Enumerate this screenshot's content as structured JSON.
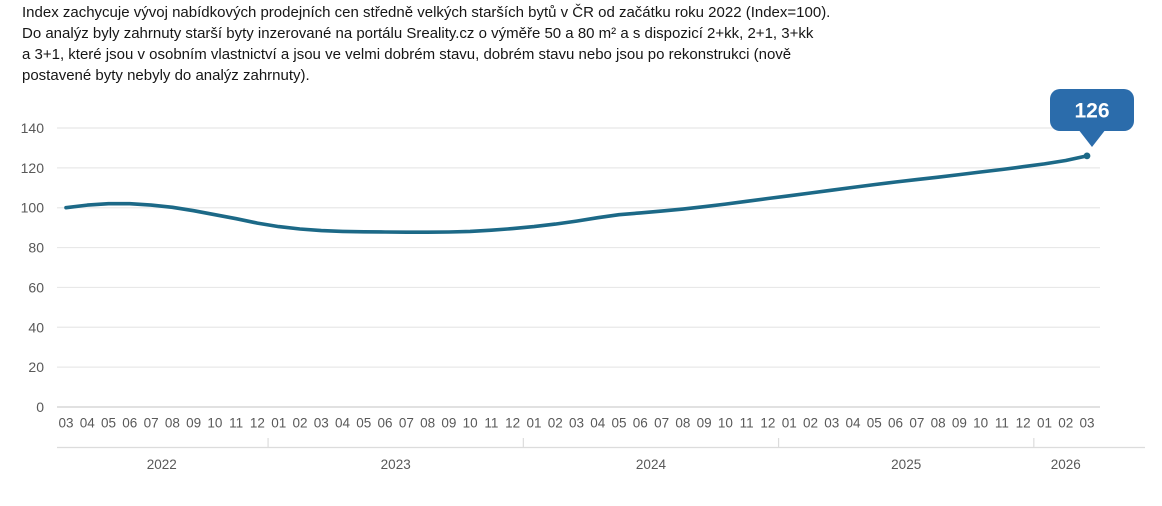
{
  "description": {
    "lines": [
      "Index zachycuje vývoj nabídkových prodejních cen středně velkých starších bytů v ČR od začátku roku 2022 (Index=100).",
      "Do analýz byly zahrnuty starší byty inzerované na portálu Sreality.cz o výměře 50 a 80 m² a s dispozicí 2+kk, 2+1, 3+kk",
      "a 3+1, které jsou v osobním vlastnictví a jsou ve velmi dobrém stavu, dobrém stavu nebo jsou po rekonstrukci (nově",
      "postavené byty nebyly do analýz zahrnuty)."
    ]
  },
  "chart_data": {
    "type": "line",
    "title": "",
    "xlabel": "",
    "ylabel": "",
    "ylim": [
      0,
      140
    ],
    "grid": true,
    "legend": "none",
    "y_ticks": [
      0,
      20,
      40,
      60,
      80,
      100,
      120,
      140
    ],
    "x_labels": [
      "03",
      "04",
      "05",
      "06",
      "07",
      "08",
      "09",
      "10",
      "11",
      "12",
      "01",
      "02",
      "03",
      "04",
      "05",
      "06",
      "07",
      "08",
      "09",
      "10",
      "11",
      "12",
      "01",
      "02",
      "03",
      "04",
      "05",
      "06",
      "07",
      "08",
      "09",
      "10",
      "11",
      "12",
      "01",
      "02",
      "03",
      "04",
      "05",
      "06",
      "07",
      "08",
      "09",
      "10",
      "11",
      "12",
      "01",
      "02",
      "03"
    ],
    "year_groups": [
      {
        "label": "2022",
        "count": 10
      },
      {
        "label": "2023",
        "count": 12
      },
      {
        "label": "2024",
        "count": 12
      },
      {
        "label": "2025",
        "count": 12
      },
      {
        "label": "2026",
        "count": 3
      }
    ],
    "values": [
      100,
      101.3,
      102,
      102,
      101.3,
      100.2,
      98.5,
      96.5,
      94.5,
      92.3,
      90.5,
      89.3,
      88.5,
      88.1,
      87.9,
      87.8,
      87.7,
      87.7,
      87.8,
      88.1,
      88.7,
      89.5,
      90.5,
      91.8,
      93.3,
      95,
      96.5,
      97.4,
      98.3,
      99.3,
      100.5,
      101.8,
      103.2,
      104.6,
      106,
      107.4,
      108.8,
      110.2,
      111.6,
      112.9,
      114.1,
      115.3,
      116.6,
      117.9,
      119.2,
      120.6,
      122,
      123.7,
      126
    ],
    "end_label": "126",
    "colors": {
      "line": "#1c6987",
      "badge": "#2b6cab",
      "badge_text": "#ffffff",
      "grid": "#e8e8e8",
      "zero_line": "#cfcfcf",
      "separator": "#dcdcdc",
      "axis_text": "#595959"
    }
  }
}
